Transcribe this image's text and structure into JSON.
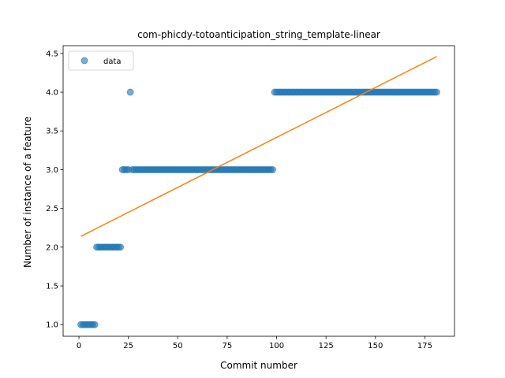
{
  "chart_data": {
    "type": "scatter",
    "title": "com-phicdy-totoanticipation_string_template-linear",
    "xlabel": "Commit number",
    "ylabel": "Number of instance of a feature",
    "xlim": [
      -8,
      190
    ],
    "ylim": [
      0.85,
      4.6
    ],
    "x_ticks": [
      0,
      25,
      50,
      75,
      100,
      125,
      150,
      175
    ],
    "y_ticks": [
      1.0,
      1.5,
      2.0,
      2.5,
      3.0,
      3.5,
      4.0,
      4.5
    ],
    "y_tick_labels": [
      "1.0",
      "1.5",
      "2.0",
      "2.5",
      "3.0",
      "3.5",
      "4.0",
      "4.5"
    ],
    "legend": {
      "position": "top-left",
      "entries": [
        "data"
      ]
    },
    "point_color": "#1f77b4",
    "fit_color": "#ff7f0e",
    "series": [
      {
        "name": "data",
        "kind": "points",
        "segments": [
          {
            "x_from": 1,
            "x_to": 8,
            "y": 1.0
          },
          {
            "x_from": 9,
            "x_to": 21,
            "y": 2.0
          },
          {
            "x_from": 22,
            "x_to": 25,
            "y": 3.0
          },
          {
            "x_from": 26,
            "x_to": 26,
            "y": 4.0
          },
          {
            "x_from": 27,
            "x_to": 98,
            "y": 3.0
          },
          {
            "x_from": 99,
            "x_to": 181,
            "y": 4.0
          }
        ]
      },
      {
        "kind": "line",
        "x": [
          1,
          181
        ],
        "y": [
          2.14,
          4.46
        ]
      }
    ]
  }
}
